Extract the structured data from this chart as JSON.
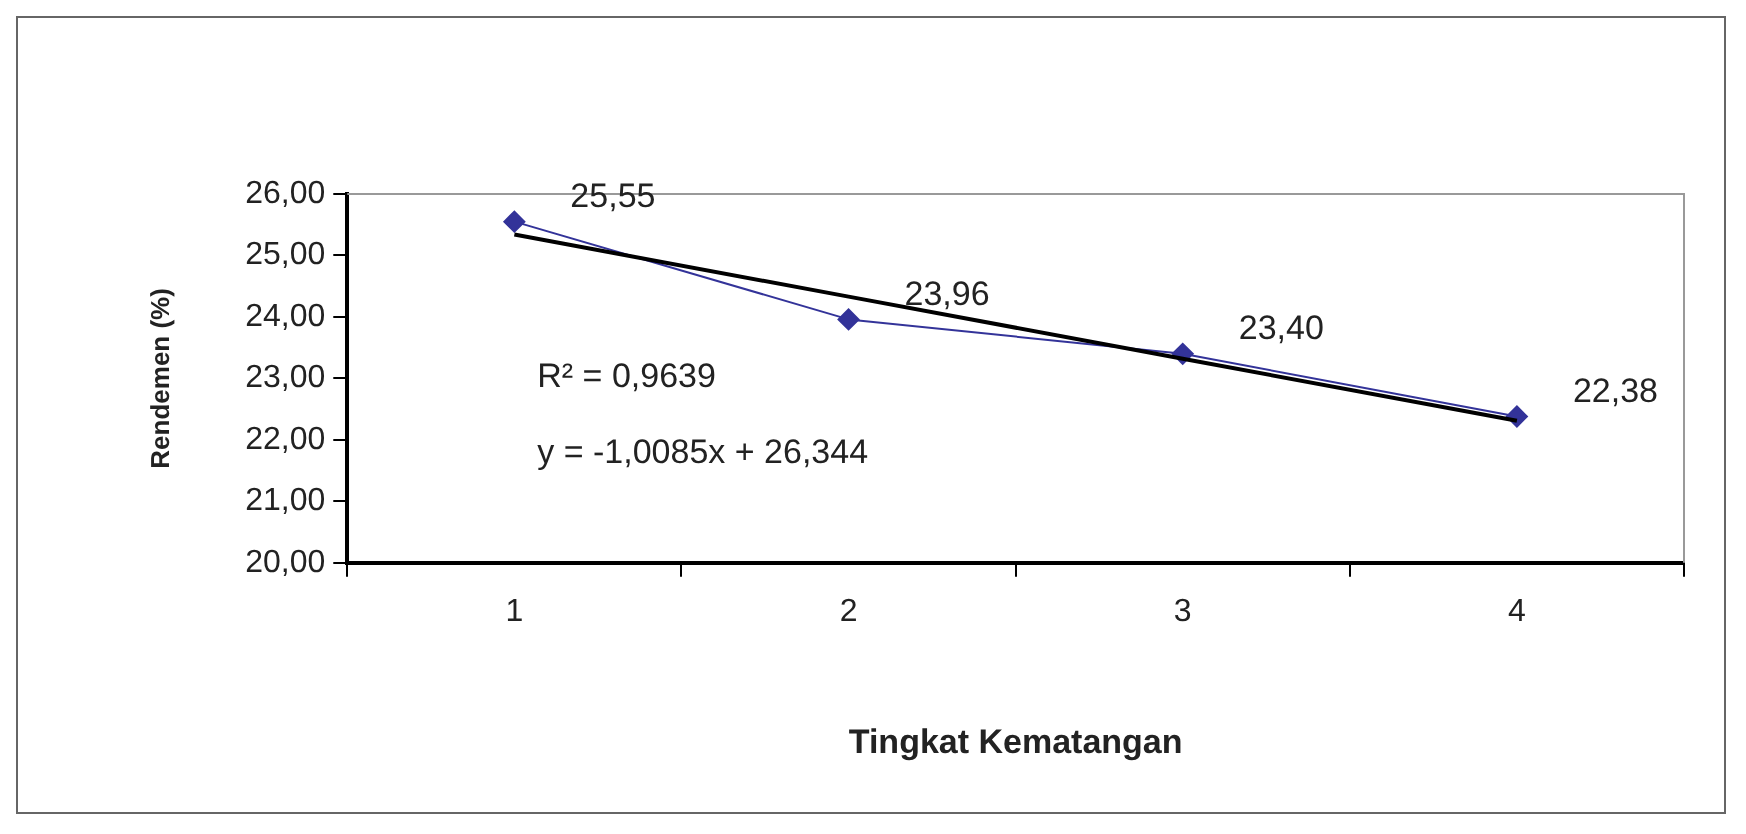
{
  "chart_data": {
    "type": "line",
    "xlabel": "Tingkat Kematangan",
    "ylabel": "Rendemen (%)",
    "categories": [
      "1",
      "2",
      "3",
      "4"
    ],
    "series": [
      {
        "color": "#333399",
        "values": [
          25.55,
          23.96,
          23.4,
          22.38
        ],
        "value_labels": [
          "25,55",
          "23,96",
          "23,40",
          "22,38"
        ],
        "marker": "diamond"
      },
      {
        "color": "#000000",
        "values": [
          25.34,
          24.33,
          23.32,
          22.31
        ],
        "marker": "none"
      }
    ],
    "ylim": [
      20,
      26
    ],
    "yticks": [
      {
        "value": 20,
        "label": "20,00"
      },
      {
        "value": 21,
        "label": "21,00"
      },
      {
        "value": 22,
        "label": "22,00"
      },
      {
        "value": 23,
        "label": "23,00"
      },
      {
        "value": 24,
        "label": "24,00"
      },
      {
        "value": 25,
        "label": "25,00"
      },
      {
        "value": 26,
        "label": "26,00"
      }
    ],
    "grid": false,
    "annotations": [
      "R² = 0,9639",
      "y = -1,0085x + 26,344"
    ]
  }
}
